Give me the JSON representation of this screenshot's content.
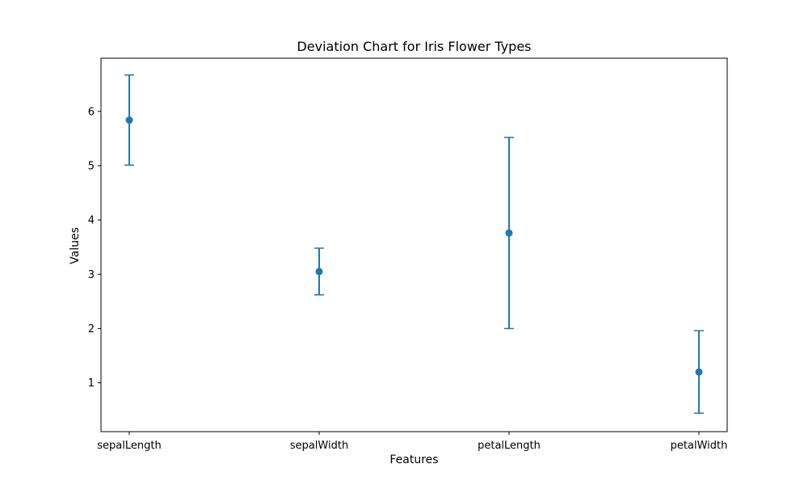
{
  "chart_data": {
    "type": "errorbar",
    "title": "Deviation Chart for Iris Flower Types",
    "xlabel": "Features",
    "ylabel": "Values",
    "categories": [
      "sepalLength",
      "sepalWidth",
      "petalLength",
      "petalWidth"
    ],
    "values": [
      5.84,
      3.05,
      3.76,
      1.2
    ],
    "errors": [
      0.83,
      0.43,
      1.76,
      0.76
    ],
    "yticks": [
      1,
      2,
      3,
      4,
      5,
      6
    ],
    "ylim": [
      0.1,
      6.98
    ],
    "grid": false,
    "color": "#1f77b4"
  }
}
